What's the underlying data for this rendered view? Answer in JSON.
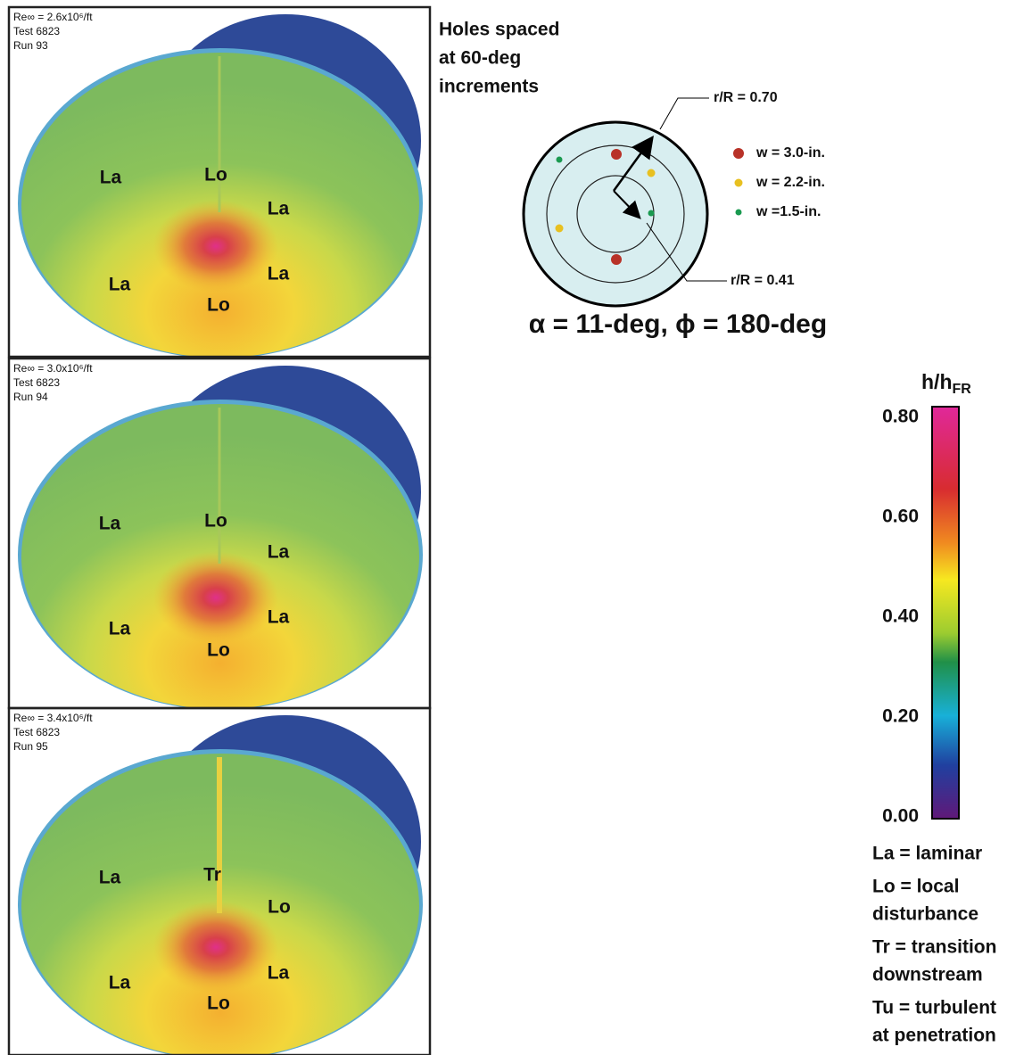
{
  "panels": [
    {
      "re": "Re∞ = 2.6x10⁶/ft",
      "test": "Test 6823",
      "run": "Run 93",
      "regions": [
        "La",
        "Lo",
        "La",
        "La",
        "La",
        "Lo"
      ]
    },
    {
      "re": "Re∞ = 3.0x10⁶/ft",
      "test": "Test 6823",
      "run": "Run 94",
      "regions": [
        "La",
        "Lo",
        "La",
        "La",
        "La",
        "Lo"
      ]
    },
    {
      "re": "Re∞ = 3.4x10⁶/ft",
      "test": "Test 6823",
      "run": "Run 95",
      "regions": [
        "La",
        "Tr",
        "Lo",
        "La",
        "La",
        "Lo"
      ]
    }
  ],
  "diagram": {
    "title": [
      "Holes spaced",
      "at 60-deg",
      "increments"
    ],
    "outer_label": "r/R = 0.70",
    "inner_label": "r/R = 0.41",
    "legend": [
      "w = 3.0-in.",
      "w = 2.2-in.",
      "w =1.5-in."
    ],
    "caption": "α = 11-deg, ϕ = 180-deg"
  },
  "colorbar": {
    "title": "h/h",
    "title_sub": "FR",
    "ticks": [
      "0.80",
      "0.60",
      "0.40",
      "0.20",
      "0.00"
    ]
  },
  "definitions": [
    [
      "La = laminar"
    ],
    [
      "Lo = local",
      "disturbance"
    ],
    [
      "Tr = transition",
      "downstream"
    ],
    [
      "Tu = turbulent",
      "at penetration"
    ]
  ]
}
